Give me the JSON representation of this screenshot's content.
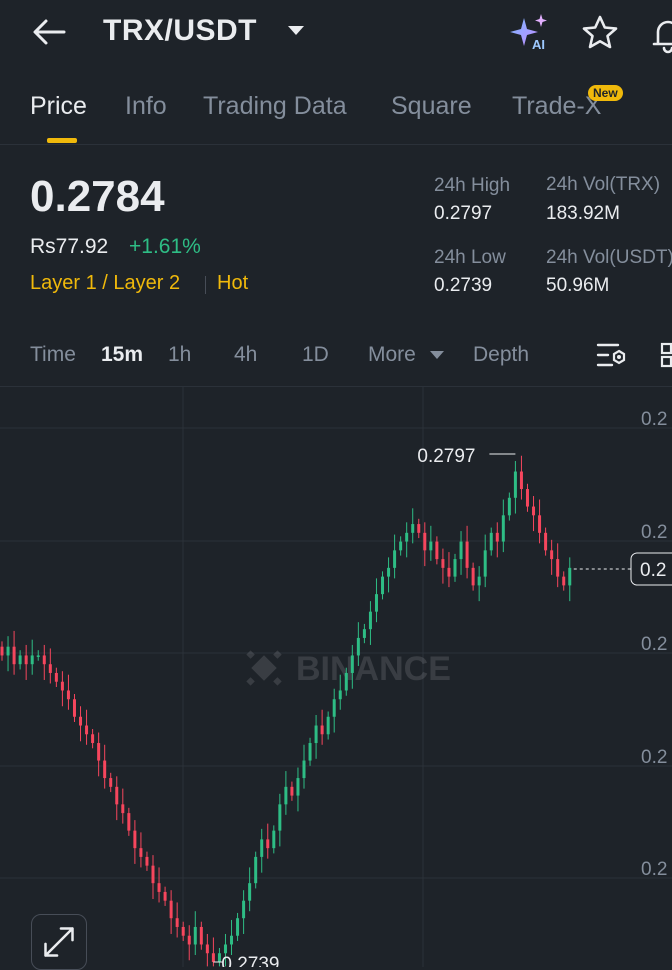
{
  "header": {
    "pair": "TRX/USDT",
    "ai_label": "AI"
  },
  "tabs": [
    {
      "label": "Price",
      "active": true
    },
    {
      "label": "Info",
      "active": false
    },
    {
      "label": "Trading Data",
      "active": false
    },
    {
      "label": "Square",
      "active": false
    },
    {
      "label": "Trade-X",
      "active": false,
      "badge": "New"
    }
  ],
  "price": {
    "last": "0.2784",
    "local": "Rs77.92",
    "change": "+1.61%",
    "tags": [
      "Layer 1 / Layer 2",
      "Hot"
    ]
  },
  "stats": {
    "high_label": "24h High",
    "high_value": "0.2797",
    "low_label": "24h Low",
    "low_value": "0.2739",
    "vol_base_label": "24h Vol(TRX)",
    "vol_base_value": "183.92M",
    "vol_quote_label": "24h Vol(USDT)",
    "vol_quote_value": "50.96M"
  },
  "intervals": {
    "items": [
      "Time",
      "15m",
      "1h",
      "4h",
      "1D"
    ],
    "active": "15m",
    "more": "More",
    "depth": "Depth"
  },
  "chart_data": {
    "type": "candlestick",
    "interval": "15m",
    "high_marker": "0.2797",
    "low_marker": "0.2739",
    "current_price_tag": "0.2",
    "y_tick_labels": [
      "0.2",
      "0.2",
      "0.2",
      "0.2",
      "0.2"
    ],
    "watermark": "BINANCE",
    "grid": true,
    "up_color": "#2ebd85",
    "down_color": "#f6465d",
    "close_series": [
      0.2774,
      0.2775,
      0.2773,
      0.2774,
      0.2773,
      0.2774,
      0.2774,
      0.2773,
      0.2772,
      0.2771,
      0.277,
      0.2769,
      0.2767,
      0.2766,
      0.2765,
      0.2764,
      0.2762,
      0.276,
      0.2759,
      0.2757,
      0.2756,
      0.2754,
      0.2752,
      0.2751,
      0.275,
      0.2748,
      0.2747,
      0.2746,
      0.2744,
      0.2743,
      0.2742,
      0.2741,
      0.2743,
      0.2741,
      0.274,
      0.2739,
      0.274,
      0.2741,
      0.2742,
      0.2744,
      0.2746,
      0.2748,
      0.2751,
      0.2753,
      0.2752,
      0.2754,
      0.2757,
      0.2759,
      0.2758,
      0.276,
      0.2762,
      0.2764,
      0.2766,
      0.2765,
      0.2767,
      0.2769,
      0.277,
      0.2772,
      0.2774,
      0.2776,
      0.2777,
      0.2779,
      0.2781,
      0.2783,
      0.2784,
      0.2786,
      0.2787,
      0.2788,
      0.2789,
      0.2788,
      0.2786,
      0.2787,
      0.2785,
      0.2784,
      0.2783,
      0.2785,
      0.2787,
      0.2784,
      0.2782,
      0.2783,
      0.2786,
      0.2788,
      0.2787,
      0.279,
      0.2792,
      0.2795,
      0.2793,
      0.2791,
      0.279,
      0.2788,
      0.2786,
      0.2785,
      0.2783,
      0.2782,
      0.2784
    ]
  }
}
